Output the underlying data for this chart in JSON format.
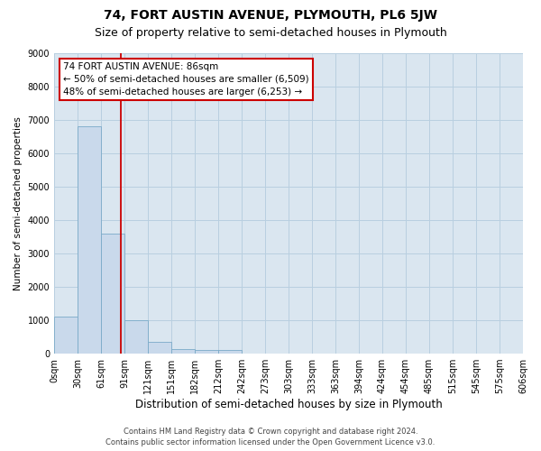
{
  "title": "74, FORT AUSTIN AVENUE, PLYMOUTH, PL6 5JW",
  "subtitle": "Size of property relative to semi-detached houses in Plymouth",
  "xlabel": "Distribution of semi-detached houses by size in Plymouth",
  "ylabel": "Number of semi-detached properties",
  "bar_color": "#c9d9eb",
  "bar_edge_color": "#7aaac8",
  "grid_color": "#b8cfe0",
  "background_color": "#dae6f0",
  "annotation_text": "74 FORT AUSTIN AVENUE: 86sqm\n← 50% of semi-detached houses are smaller (6,509)\n48% of semi-detached houses are larger (6,253) →",
  "vline_color": "#cc0000",
  "bin_labels": [
    "0sqm",
    "30sqm",
    "61sqm",
    "91sqm",
    "121sqm",
    "151sqm",
    "182sqm",
    "212sqm",
    "242sqm",
    "273sqm",
    "303sqm",
    "333sqm",
    "363sqm",
    "394sqm",
    "424sqm",
    "454sqm",
    "485sqm",
    "515sqm",
    "545sqm",
    "575sqm",
    "606sqm"
  ],
  "counts": [
    1100,
    6800,
    3600,
    1000,
    350,
    150,
    100,
    100,
    0,
    0,
    0,
    0,
    0,
    0,
    0,
    0,
    0,
    0,
    0,
    0
  ],
  "ylim": [
    0,
    9000
  ],
  "yticks": [
    0,
    1000,
    2000,
    3000,
    4000,
    5000,
    6000,
    7000,
    8000,
    9000
  ],
  "footnote": "Contains HM Land Registry data © Crown copyright and database right 2024.\nContains public sector information licensed under the Open Government Licence v3.0.",
  "title_fontsize": 10,
  "subtitle_fontsize": 9,
  "xlabel_fontsize": 8.5,
  "ylabel_fontsize": 7.5,
  "tick_fontsize": 7,
  "annotation_fontsize": 7.5,
  "footnote_fontsize": 6
}
